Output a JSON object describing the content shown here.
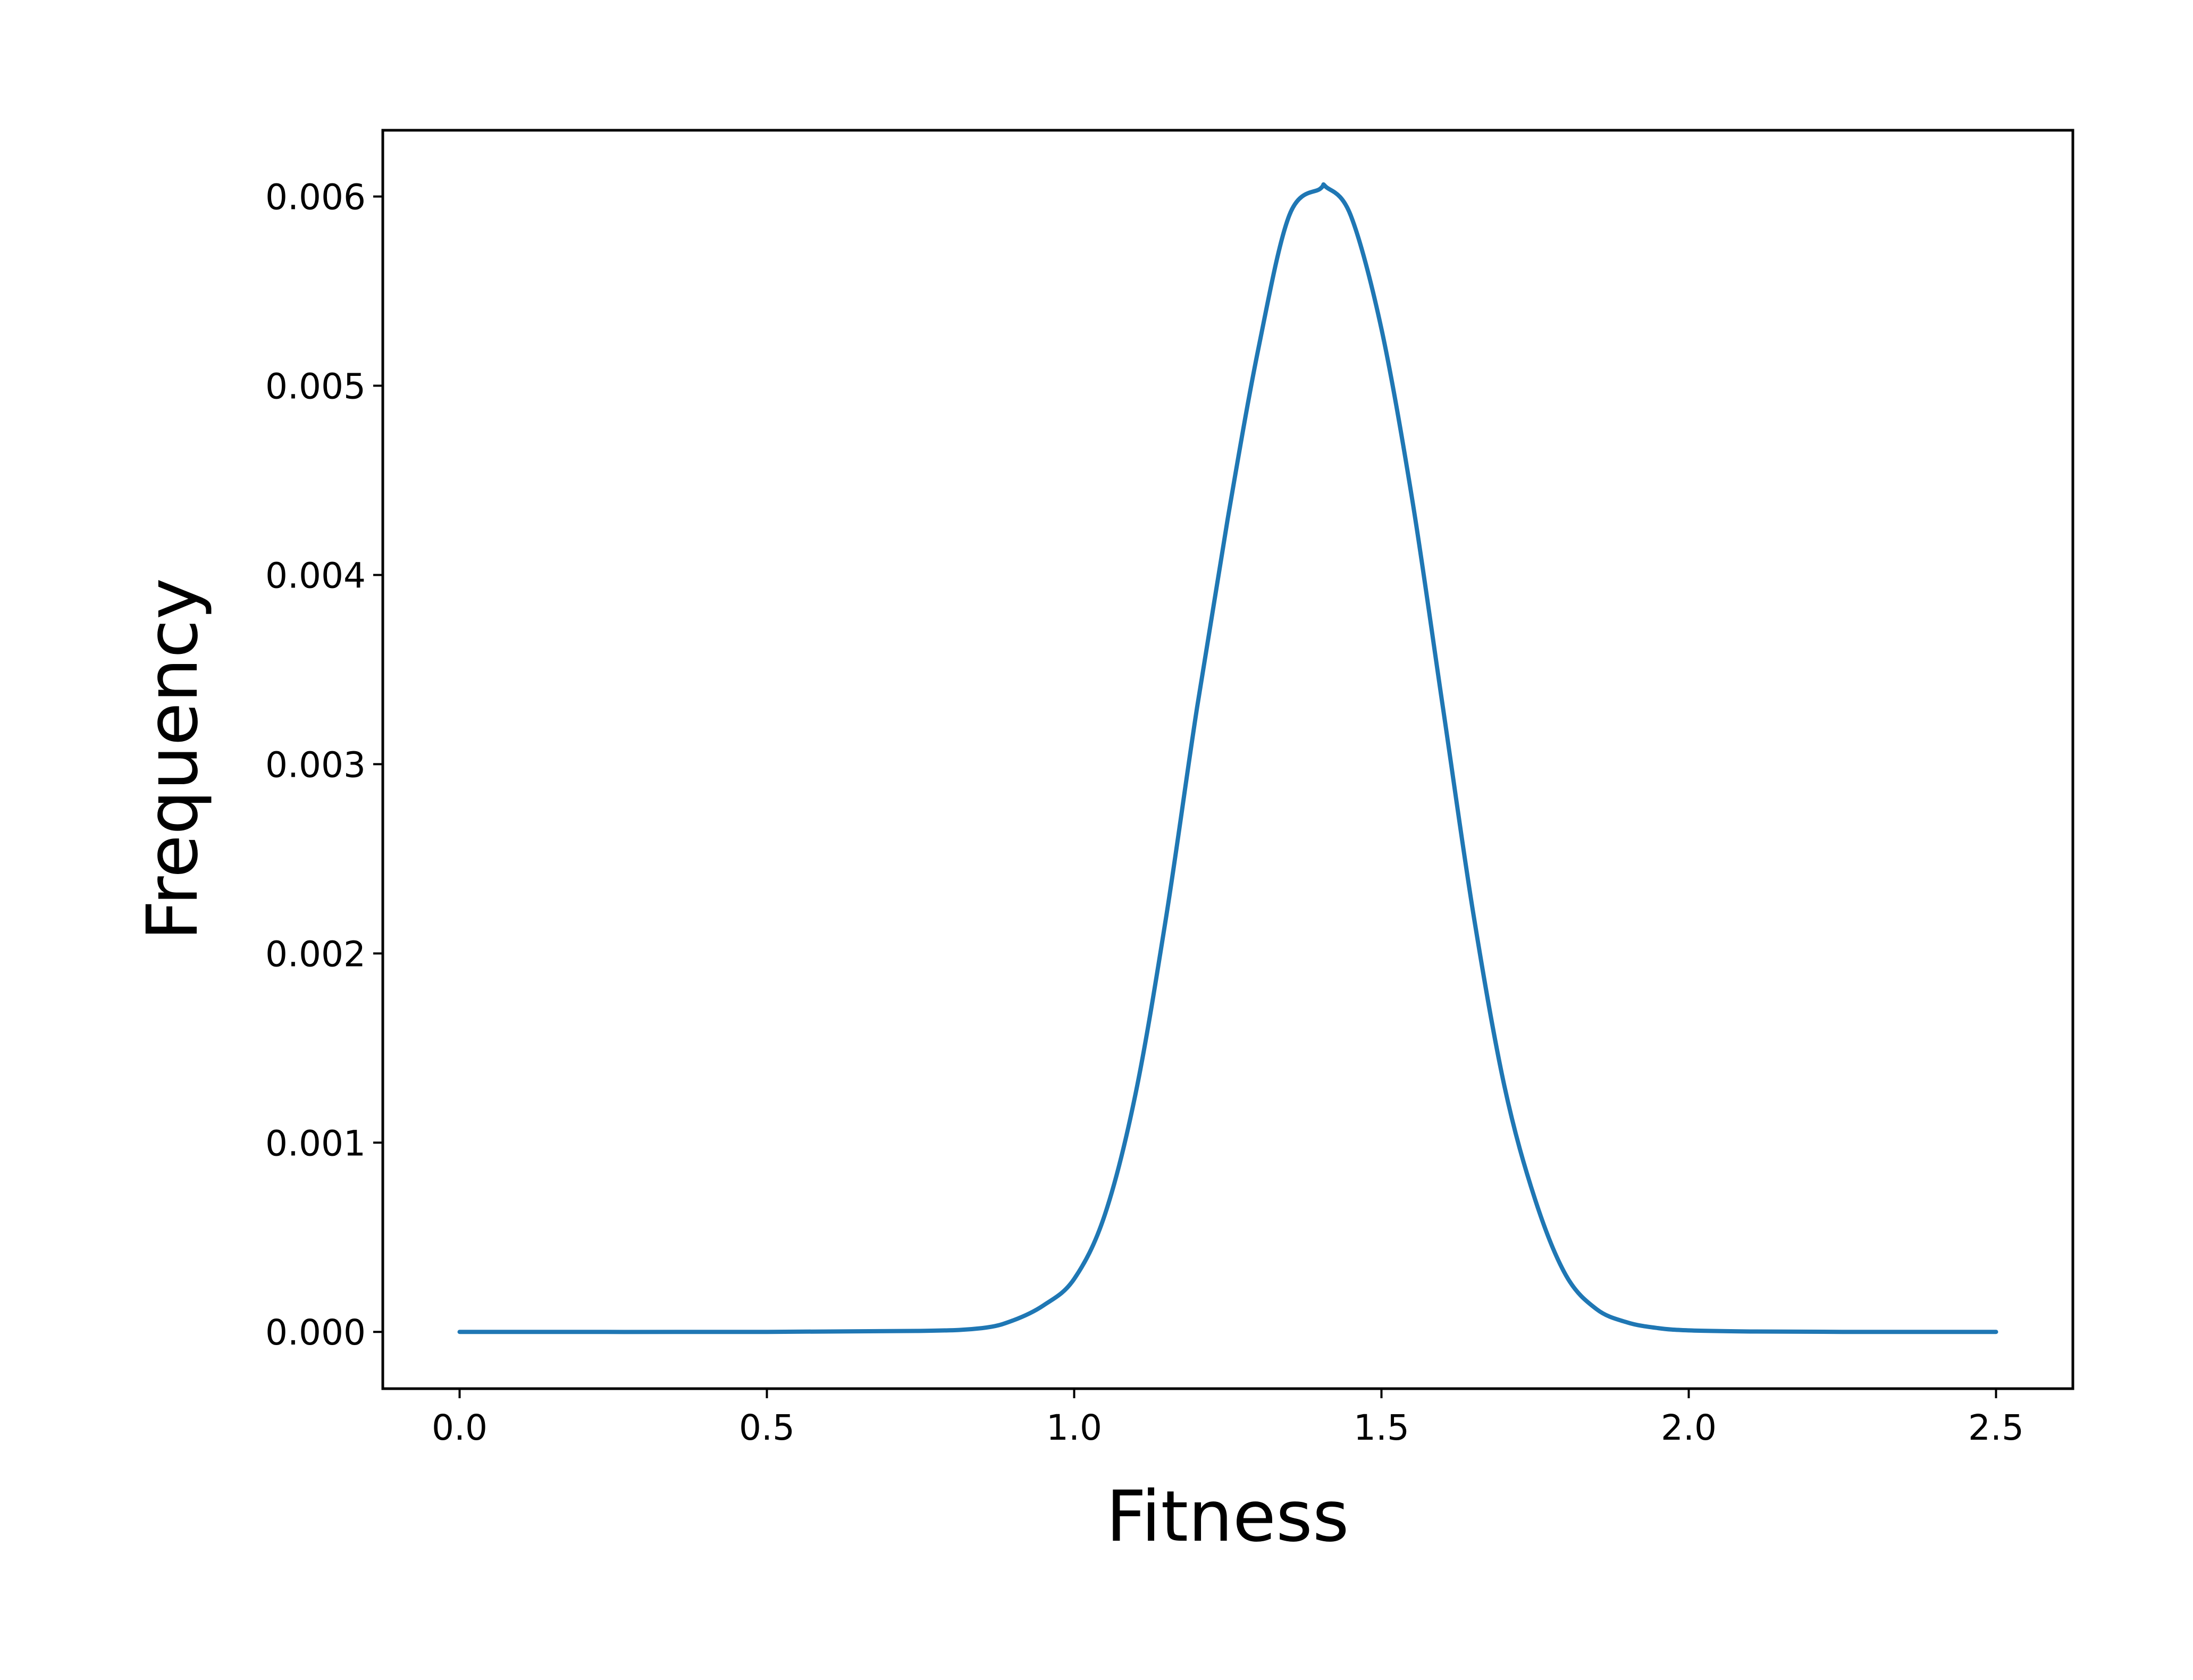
{
  "chart_data": {
    "type": "line",
    "title": "",
    "xlabel": "Fitness",
    "ylabel": "Frequency",
    "xlim": [
      -0.125,
      2.625
    ],
    "ylim": [
      -0.0003,
      0.00635
    ],
    "xticks": [
      0.0,
      0.5,
      1.0,
      1.5,
      2.0,
      2.5
    ],
    "xtick_labels": [
      "0.0",
      "0.5",
      "1.0",
      "1.5",
      "2.0",
      "2.5"
    ],
    "yticks": [
      0.0,
      0.001,
      0.002,
      0.003,
      0.004,
      0.005,
      0.006
    ],
    "ytick_labels": [
      "0.000",
      "0.001",
      "0.002",
      "0.003",
      "0.004",
      "0.005",
      "0.006"
    ],
    "grid": false,
    "series": [
      {
        "color": "#1f77b4",
        "x": [
          0.0,
          0.5,
          0.75,
          0.85,
          0.9,
          0.95,
          1.0,
          1.05,
          1.1,
          1.15,
          1.2,
          1.25,
          1.3,
          1.35,
          1.4,
          1.41,
          1.45,
          1.5,
          1.55,
          1.6,
          1.65,
          1.7,
          1.75,
          1.8,
          1.85,
          1.9,
          1.95,
          2.0,
          2.1,
          2.25,
          2.5
        ],
        "y": [
          0.0,
          0.0,
          5e-06,
          2e-05,
          6e-05,
          0.00014,
          0.00028,
          0.00062,
          0.00126,
          0.0022,
          0.0033,
          0.0043,
          0.0052,
          0.0059,
          0.00604,
          0.00605,
          0.0059,
          0.0053,
          0.0044,
          0.0033,
          0.0022,
          0.0013,
          0.0007,
          0.0003,
          0.00012,
          5e-05,
          2e-05,
          8e-06,
          2e-06,
          0.0,
          0.0
        ]
      }
    ]
  }
}
